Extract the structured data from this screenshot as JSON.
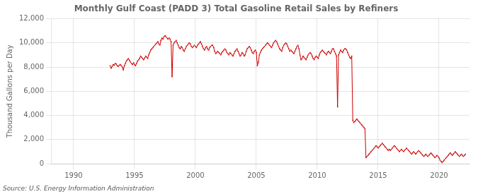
{
  "chart_data": {
    "type": "line",
    "title": "Monthly Gulf Coast (PADD 3) Total Gasoline Retail Sales by Refiners",
    "ylabel": "Thousand Gallons per Day",
    "annotation": "Source: U.S. Energy Information Administration",
    "color": "#cc0000",
    "marker": "square",
    "line_style": "solid",
    "grid": true,
    "xlim": [
      1988.2,
      2022.5
    ],
    "xticks": [
      1990,
      1995,
      2000,
      2005,
      2010,
      2015,
      2020
    ],
    "ylim": [
      0,
      12000
    ],
    "yticks": [
      0,
      {
        "value": 2000,
        "label": "2,000"
      },
      {
        "value": 4000,
        "label": "4,000"
      },
      {
        "value": 6000,
        "label": "6,000"
      },
      {
        "value": 8000,
        "label": "8,000"
      },
      {
        "value": 10000,
        "label": "10,000"
      },
      {
        "value": 12000,
        "label": "12,000"
      }
    ],
    "x": [
      1993.0,
      1993.083,
      1993.167,
      1993.25,
      1993.333,
      1993.417,
      1993.5,
      1993.583,
      1993.667,
      1993.75,
      1993.833,
      1993.917,
      1994.0,
      1994.083,
      1994.167,
      1994.25,
      1994.333,
      1994.417,
      1994.5,
      1994.583,
      1994.667,
      1994.75,
      1994.833,
      1994.917,
      1995.0,
      1995.083,
      1995.167,
      1995.25,
      1995.333,
      1995.417,
      1995.5,
      1995.583,
      1995.667,
      1995.75,
      1995.833,
      1995.917,
      1996.0,
      1996.083,
      1996.167,
      1996.25,
      1996.333,
      1996.417,
      1996.5,
      1996.583,
      1996.667,
      1996.75,
      1996.833,
      1996.917,
      1997.0,
      1997.083,
      1997.167,
      1997.25,
      1997.333,
      1997.417,
      1997.5,
      1997.583,
      1997.667,
      1997.75,
      1997.833,
      1997.917,
      1998.0,
      1998.083,
      1998.167,
      1998.25,
      1998.333,
      1998.417,
      1998.5,
      1998.583,
      1998.667,
      1998.75,
      1998.833,
      1998.917,
      1999.0,
      1999.083,
      1999.167,
      1999.25,
      1999.333,
      1999.417,
      1999.5,
      1999.583,
      1999.667,
      1999.75,
      1999.833,
      1999.917,
      2000.0,
      2000.083,
      2000.167,
      2000.25,
      2000.333,
      2000.417,
      2000.5,
      2000.583,
      2000.667,
      2000.75,
      2000.833,
      2000.917,
      2001.0,
      2001.083,
      2001.167,
      2001.25,
      2001.333,
      2001.417,
      2001.5,
      2001.583,
      2001.667,
      2001.75,
      2001.833,
      2001.917,
      2002.0,
      2002.083,
      2002.167,
      2002.25,
      2002.333,
      2002.417,
      2002.5,
      2002.583,
      2002.667,
      2002.75,
      2002.833,
      2002.917,
      2003.0,
      2003.083,
      2003.167,
      2003.25,
      2003.333,
      2003.417,
      2003.5,
      2003.583,
      2003.667,
      2003.75,
      2003.833,
      2003.917,
      2004.0,
      2004.083,
      2004.167,
      2004.25,
      2004.333,
      2004.417,
      2004.5,
      2004.583,
      2004.667,
      2004.75,
      2004.833,
      2004.917,
      2005.0,
      2005.083,
      2005.167,
      2005.25,
      2005.333,
      2005.417,
      2005.5,
      2005.583,
      2005.667,
      2005.75,
      2005.833,
      2005.917,
      2006.0,
      2006.083,
      2006.167,
      2006.25,
      2006.333,
      2006.417,
      2006.5,
      2006.583,
      2006.667,
      2006.75,
      2006.833,
      2006.917,
      2007.0,
      2007.083,
      2007.167,
      2007.25,
      2007.333,
      2007.417,
      2007.5,
      2007.583,
      2007.667,
      2007.75,
      2007.833,
      2007.917,
      2008.0,
      2008.083,
      2008.167,
      2008.25,
      2008.333,
      2008.417,
      2008.5,
      2008.583,
      2008.667,
      2008.75,
      2008.833,
      2008.917,
      2009.0,
      2009.083,
      2009.167,
      2009.25,
      2009.333,
      2009.417,
      2009.5,
      2009.583,
      2009.667,
      2009.75,
      2009.833,
      2009.917,
      2010.0,
      2010.083,
      2010.167,
      2010.25,
      2010.333,
      2010.417,
      2010.5,
      2010.583,
      2010.667,
      2010.75,
      2010.833,
      2010.917,
      2011.0,
      2011.083,
      2011.167,
      2011.25,
      2011.333,
      2011.417,
      2011.5,
      2011.583,
      2011.667,
      2011.75,
      2011.833,
      2011.917,
      2012.0,
      2012.083,
      2012.167,
      2012.25,
      2012.333,
      2012.417,
      2012.5,
      2012.583,
      2012.667,
      2012.75,
      2012.833,
      2012.917,
      2013.0,
      2013.083,
      2013.167,
      2013.25,
      2013.333,
      2013.417,
      2013.5,
      2013.583,
      2013.667,
      2013.75,
      2013.833,
      2013.917,
      2014.0,
      2014.083,
      2014.167,
      2014.25,
      2014.333,
      2014.417,
      2014.5,
      2014.583,
      2014.667,
      2014.75,
      2014.833,
      2014.917,
      2015.0,
      2015.083,
      2015.167,
      2015.25,
      2015.333,
      2015.417,
      2015.5,
      2015.583,
      2015.667,
      2015.75,
      2015.833,
      2015.917,
      2016.0,
      2016.083,
      2016.167,
      2016.25,
      2016.333,
      2016.417,
      2016.5,
      2016.583,
      2016.667,
      2016.75,
      2016.833,
      2016.917,
      2017.0,
      2017.083,
      2017.167,
      2017.25,
      2017.333,
      2017.417,
      2017.5,
      2017.583,
      2017.667,
      2017.75,
      2017.833,
      2017.917,
      2018.0,
      2018.083,
      2018.167,
      2018.25,
      2018.333,
      2018.417,
      2018.5,
      2018.583,
      2018.667,
      2018.75,
      2018.833,
      2018.917,
      2019.0,
      2019.083,
      2019.167,
      2019.25,
      2019.333,
      2019.417,
      2019.5,
      2019.583,
      2019.667,
      2019.75,
      2019.833,
      2019.917,
      2020.0,
      2020.083,
      2020.167,
      2020.25,
      2020.333,
      2020.417,
      2020.5,
      2020.583,
      2020.667,
      2020.75,
      2020.833,
      2020.917,
      2021.0,
      2021.083,
      2021.167,
      2021.25,
      2021.333,
      2021.417,
      2021.5,
      2021.583,
      2021.667,
      2021.75,
      2021.833,
      2021.917,
      2022.0,
      2022.083,
      2022.167
    ],
    "values": [
      8100,
      7900,
      8050,
      8200,
      8150,
      8300,
      8250,
      8100,
      8050,
      8150,
      8200,
      8100,
      8000,
      7750,
      8100,
      8300,
      8500,
      8600,
      8700,
      8550,
      8400,
      8300,
      8200,
      8350,
      8200,
      8100,
      8300,
      8500,
      8600,
      8700,
      8900,
      8800,
      8700,
      8600,
      8750,
      8900,
      8800,
      8700,
      9000,
      9200,
      9400,
      9500,
      9600,
      9700,
      9800,
      9900,
      10000,
      10100,
      9900,
      9800,
      10200,
      10400,
      10300,
      10500,
      10600,
      10500,
      10400,
      10300,
      10400,
      10300,
      10100,
      7200,
      9800,
      10000,
      10100,
      10200,
      10000,
      9800,
      9600,
      9500,
      9700,
      9600,
      9400,
      9300,
      9500,
      9700,
      9800,
      9900,
      10000,
      9900,
      9700,
      9600,
      9700,
      9800,
      9700,
      9600,
      9800,
      9900,
      10000,
      10100,
      9900,
      9700,
      9500,
      9400,
      9600,
      9700,
      9500,
      9400,
      9600,
      9700,
      9800,
      9800,
      9600,
      9300,
      9100,
      9200,
      9300,
      9200,
      9100,
      9000,
      9200,
      9300,
      9400,
      9500,
      9400,
      9200,
      9100,
      9000,
      9200,
      9100,
      9000,
      8900,
      9100,
      9300,
      9400,
      9500,
      9300,
      9100,
      8900,
      9000,
      9200,
      9100,
      8900,
      9000,
      9300,
      9500,
      9600,
      9700,
      9600,
      9400,
      9200,
      9100,
      9300,
      9400,
      9200,
      8100,
      8400,
      9000,
      9200,
      9400,
      9500,
      9600,
      9700,
      9800,
      9900,
      10000,
      9900,
      9800,
      9700,
      9600,
      9800,
      10000,
      10100,
      10200,
      10100,
      9900,
      9700,
      9500,
      9400,
      9300,
      9600,
      9800,
      9900,
      10000,
      9900,
      9700,
      9500,
      9300,
      9400,
      9300,
      9200,
      9100,
      9300,
      9500,
      9700,
      9800,
      9500,
      9000,
      8600,
      8700,
      8900,
      8800,
      8700,
      8600,
      8800,
      9000,
      9100,
      9200,
      9100,
      8900,
      8700,
      8600,
      8800,
      8900,
      8800,
      8700,
      9000,
      9200,
      9300,
      9400,
      9300,
      9200,
      9100,
      9000,
      9200,
      9300,
      9200,
      9100,
      9300,
      9500,
      9500,
      9300,
      9100,
      8900,
      4700,
      9000,
      9200,
      9400,
      9300,
      9200,
      9400,
      9500,
      9500,
      9400,
      9200,
      9000,
      8800,
      8700,
      8900,
      3600,
      3400,
      3500,
      3600,
      3700,
      3600,
      3500,
      3400,
      3300,
      3200,
      3100,
      3000,
      2900,
      500,
      600,
      700,
      800,
      900,
      1000,
      1100,
      1200,
      1300,
      1400,
      1500,
      1400,
      1300,
      1400,
      1500,
      1600,
      1700,
      1600,
      1500,
      1400,
      1300,
      1200,
      1100,
      1200,
      1100,
      1200,
      1300,
      1400,
      1500,
      1400,
      1300,
      1200,
      1100,
      1000,
      1100,
      1200,
      1100,
      1000,
      1100,
      1200,
      1300,
      1200,
      1100,
      1000,
      900,
      800,
      900,
      1000,
      900,
      800,
      900,
      1000,
      1100,
      1000,
      900,
      800,
      700,
      600,
      700,
      800,
      700,
      600,
      700,
      800,
      900,
      800,
      700,
      600,
      500,
      600,
      700,
      600,
      500,
      300,
      200,
      100,
      200,
      300,
      400,
      500,
      600,
      700,
      800,
      900,
      800,
      700,
      800,
      900,
      1000,
      900,
      800,
      700,
      600,
      700,
      800,
      700,
      600,
      700,
      800
    ]
  }
}
